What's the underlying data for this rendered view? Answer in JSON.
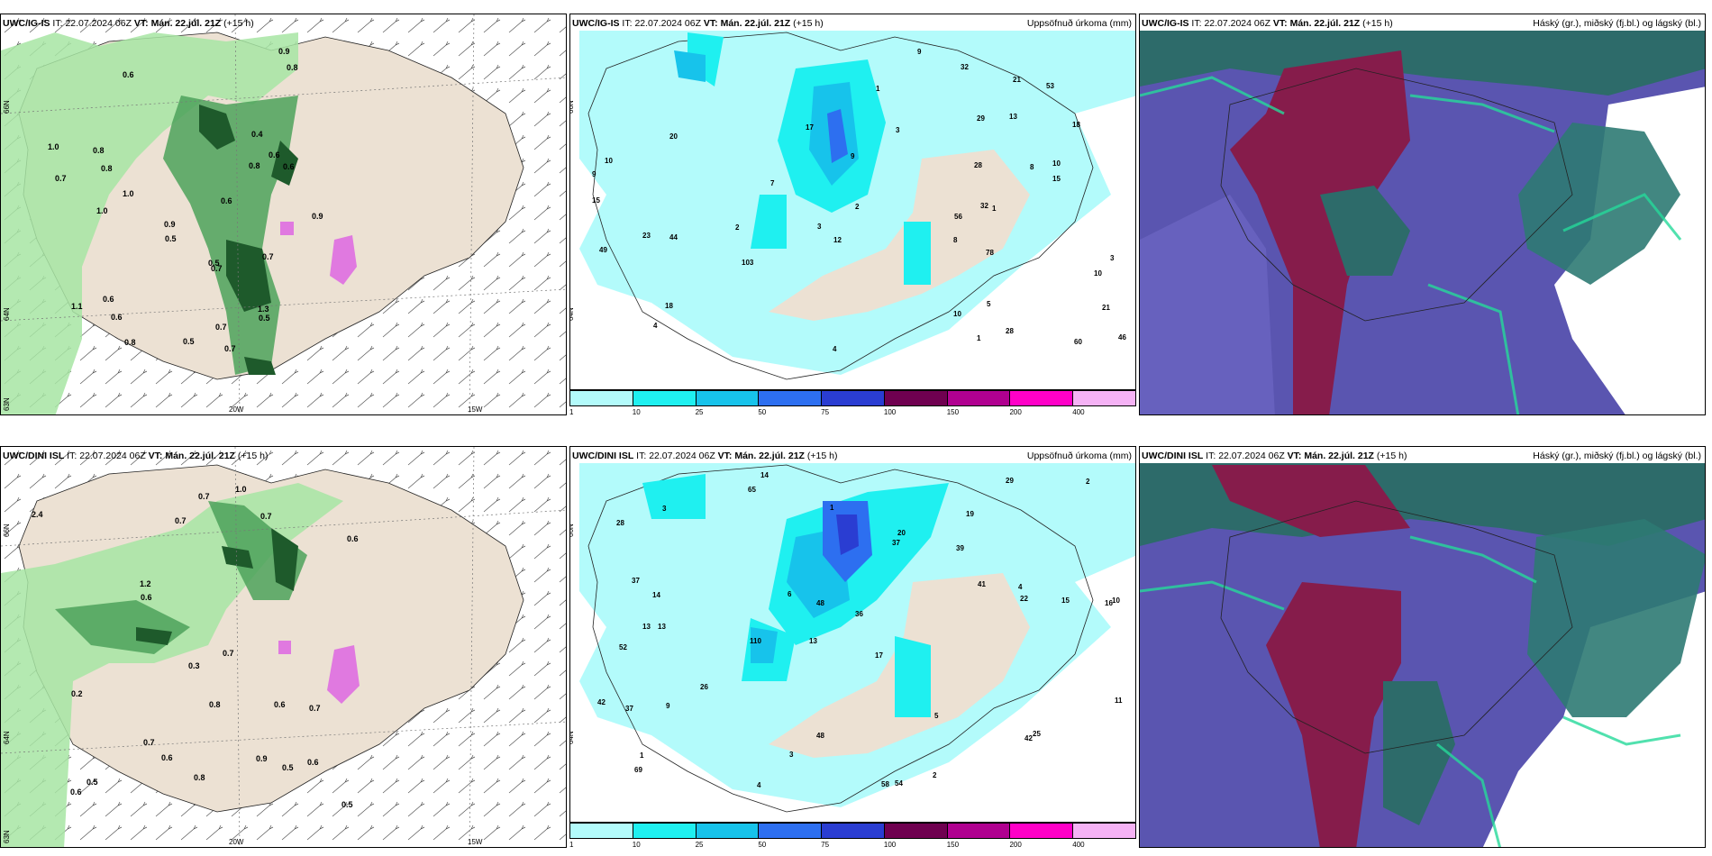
{
  "rows": [
    {
      "model": "UWC/IG-IS",
      "it_label": "IT:",
      "it_value": "22.07.2024 06Z",
      "vt_label": "VT:",
      "vt_value": "Mán. 22.júl. 21Z",
      "lead": "(+15 h)"
    },
    {
      "model": "UWC/DINI ISL",
      "it_label": "IT:",
      "it_value": "22.07.2024 06Z",
      "vt_label": "VT:",
      "vt_value": "Mán. 22.júl. 21Z",
      "lead": "(+15 h)"
    }
  ],
  "precip_title": "Uppsöfnuð úrkoma (mm)",
  "cloud_title": "Háský (gr.), miðský (fj.bl.) og lágský (bl.)",
  "axis": {
    "lon_20w": "20W",
    "lon_15w": "15W",
    "lat_66n": "66N",
    "lat_64n": "64N",
    "lat_63n": "63N"
  },
  "colorbar": {
    "labels": [
      "1",
      "10",
      "25",
      "50",
      "75",
      "100",
      "150",
      "200",
      "400"
    ],
    "colors": [
      "#b3fbfb",
      "#1ff0f0",
      "#17c3eb",
      "#2d6ff0",
      "#2a3dd2",
      "#6f0050",
      "#b00090",
      "#ff00c8",
      "#f5b2f5"
    ]
  },
  "wind_precip_labels": {
    "row1": [
      "0.7",
      "0.6",
      "0.6",
      "0.8",
      "0.6",
      "0.7",
      "0.9",
      "1.0",
      "0.5",
      "0.6",
      "1.1",
      "1.0",
      "0.9",
      "0.5",
      "0.8",
      "0.9",
      "0.7",
      "0.8",
      "0.7",
      "0.6",
      "1.3",
      "0.7",
      "0.8",
      "0.5",
      "0.6",
      "0.4",
      "1.0",
      "0.8",
      "0.5"
    ],
    "row2": [
      "0.6",
      "0.7",
      "0.7",
      "0.8",
      "0.7",
      "1.0",
      "0.6",
      "0.7",
      "0.5",
      "0.7",
      "0.5",
      "0.6",
      "0.6",
      "0.7",
      "0.9",
      "1.2",
      "0.6",
      "0.2",
      "0.3",
      "0.6",
      "2.4",
      "0.5",
      "0.8"
    ]
  },
  "precip_labels": {
    "row1": [
      "8",
      "3",
      "8",
      "10",
      "10",
      "13",
      "10",
      "9",
      "21",
      "28",
      "32",
      "56",
      "49",
      "78",
      "103",
      "60",
      "53",
      "23",
      "21",
      "17",
      "12",
      "15",
      "28",
      "32",
      "15",
      "18",
      "20",
      "29",
      "46",
      "44",
      "18",
      "9",
      "10",
      "5",
      "7",
      "4",
      "3",
      "2",
      "1",
      "1",
      "3",
      "2",
      "1",
      "4",
      "9"
    ],
    "row2": [
      "14",
      "19",
      "16",
      "13",
      "17",
      "13",
      "28",
      "39",
      "52",
      "37",
      "36",
      "69",
      "65",
      "110",
      "58",
      "54",
      "48",
      "29",
      "41",
      "26",
      "14",
      "13",
      "10",
      "15",
      "42",
      "37",
      "48",
      "22",
      "25",
      "37",
      "42",
      "20",
      "9",
      "6",
      "5",
      "11",
      "4",
      "3",
      "2",
      "1",
      "1",
      "4",
      "2",
      "3"
    ]
  }
}
